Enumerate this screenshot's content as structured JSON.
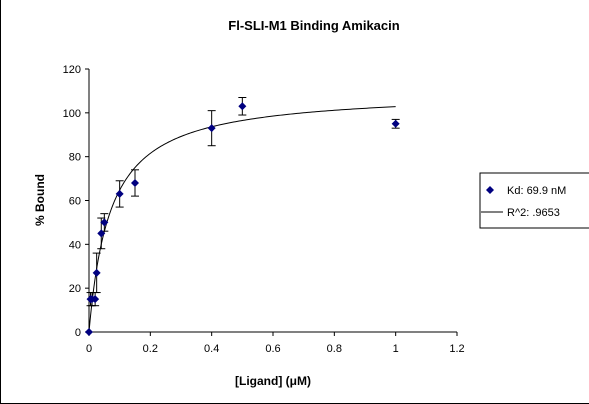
{
  "chart_data": {
    "type": "scatter",
    "title": "Fl-SLI-M1 Binding Amikacin",
    "xlabel": "[Ligand] (μM)",
    "ylabel": "% Bound",
    "xlim": [
      0,
      1.2
    ],
    "ylim": [
      0,
      120
    ],
    "x_ticks": [
      0,
      0.2,
      0.4,
      0.6,
      0.8,
      1,
      1.2
    ],
    "x_tick_labels": [
      "0",
      "0.2",
      "0.4",
      "0.6",
      "0.8",
      "1",
      "1.2"
    ],
    "y_ticks": [
      0,
      20,
      40,
      60,
      80,
      100,
      120
    ],
    "y_tick_labels": [
      "0",
      "20",
      "40",
      "60",
      "80",
      "100",
      "120"
    ],
    "grid": false,
    "legend_position": "right",
    "series": [
      {
        "name": "Kd: 69.9 nM",
        "kind": "points",
        "marker": "diamond",
        "color": "#000080",
        "points": [
          {
            "x": 0.0,
            "y": 0,
            "err": 0
          },
          {
            "x": 0.005,
            "y": 15,
            "err": 3
          },
          {
            "x": 0.01,
            "y": 15,
            "err": 3
          },
          {
            "x": 0.02,
            "y": 15,
            "err": 3
          },
          {
            "x": 0.025,
            "y": 27,
            "err": 9
          },
          {
            "x": 0.04,
            "y": 45,
            "err": 7
          },
          {
            "x": 0.05,
            "y": 50,
            "err": 4
          },
          {
            "x": 0.1,
            "y": 63,
            "err": 6
          },
          {
            "x": 0.15,
            "y": 68,
            "err": 6
          },
          {
            "x": 0.4,
            "y": 93,
            "err": 8
          },
          {
            "x": 0.5,
            "y": 103,
            "err": 4
          },
          {
            "x": 1.0,
            "y": 95,
            "err": 2
          }
        ]
      },
      {
        "name": "R^2: .9653",
        "kind": "fit",
        "color": "#000000",
        "model": "hyperbolic",
        "Bmax": 110,
        "Kd": 0.0699,
        "x_range": [
          0,
          1
        ]
      }
    ]
  }
}
